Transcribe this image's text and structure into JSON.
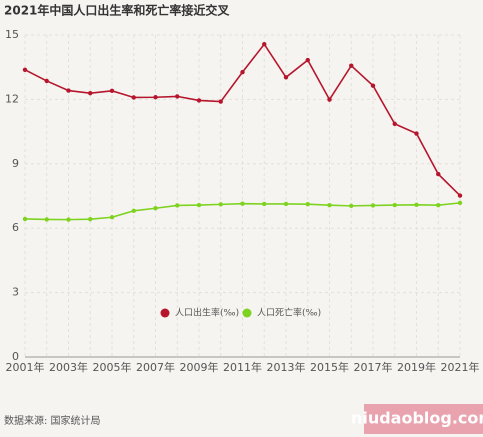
{
  "chart_data": {
    "type": "line",
    "title": "2021年中国人口出生率和死亡率接近交叉",
    "categories": [
      "2001年",
      null,
      "2003年",
      null,
      "2005年",
      null,
      "2007年",
      null,
      "2009年",
      null,
      "2011年",
      null,
      "2013年",
      null,
      "2015年",
      null,
      "2017年",
      null,
      "2019年",
      null,
      "2021年"
    ],
    "series": [
      {
        "name": "人口出生率(‰)",
        "color": "#b5162d",
        "values": [
          13.38,
          12.86,
          12.41,
          12.29,
          12.4,
          12.09,
          12.1,
          12.14,
          11.95,
          11.9,
          13.27,
          14.57,
          13.03,
          13.83,
          11.99,
          13.57,
          12.64,
          10.86,
          10.41,
          8.52,
          7.52
        ]
      },
      {
        "name": "人口死亡率(‰)",
        "color": "#7ed321",
        "values": [
          6.43,
          6.41,
          6.4,
          6.42,
          6.51,
          6.81,
          6.93,
          7.06,
          7.08,
          7.11,
          7.14,
          7.13,
          7.13,
          7.12,
          7.07,
          7.04,
          7.06,
          7.08,
          7.09,
          7.07,
          7.18
        ]
      }
    ],
    "ylim": [
      0,
      15
    ],
    "yticks": [
      0,
      3,
      6,
      9,
      12,
      15
    ],
    "grid": true,
    "legend": "center"
  },
  "source": "数据来源: 国家统计局",
  "watermark": "niudaoblog.com"
}
